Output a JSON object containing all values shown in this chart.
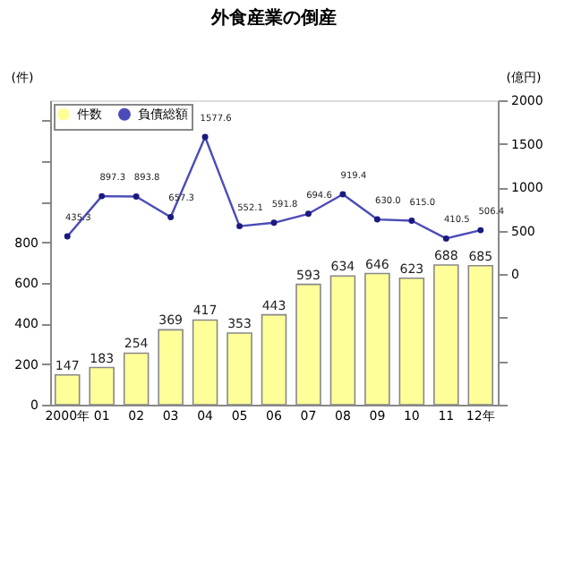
{
  "chart_data": {
    "type": "bar",
    "title": "外食産業の倒産",
    "ylabel": "(件)",
    "y2label": "(億円)",
    "categories": [
      "2000年",
      "01",
      "02",
      "03",
      "04",
      "05",
      "06",
      "07",
      "08",
      "09",
      "10",
      "11",
      "12年"
    ],
    "series": [
      {
        "name": "件数",
        "color": "#ffff99",
        "values": [
          147,
          183,
          254,
          369,
          417,
          353,
          443,
          593,
          634,
          646,
          623,
          688,
          685
        ]
      },
      {
        "name": "負債総額",
        "type": "line",
        "axis": "y2",
        "color": "#4b4bb8",
        "marker": "circle",
        "line_style": "solid",
        "values": [
          435.3,
          897.3,
          893.8,
          657.3,
          1577.6,
          552.1,
          591.8,
          694.6,
          919.4,
          630.0,
          615.0,
          410.5,
          506.4
        ],
        "value_labels": [
          "435.3",
          "897.3",
          "893.8",
          "657.3",
          "1577.6",
          "552.1",
          "591.8",
          "694.6",
          "919.4",
          "630.0",
          "615.0",
          "410.5",
          "506.4"
        ]
      }
    ],
    "ylim": [
      0,
      1500
    ],
    "yticks": [
      0,
      200,
      400,
      600,
      800,
      {
        "value": 1000,
        "label": null
      },
      {
        "value": 1200,
        "label": null
      },
      {
        "value": 1400,
        "label": null
      }
    ],
    "y2lim": [
      -1500,
      2000
    ],
    "y2ticks": [
      {
        "value": -1500,
        "label": null
      },
      {
        "value": -1000,
        "label": null
      },
      {
        "value": -500,
        "label": null
      },
      0,
      500,
      1000,
      1500,
      2000
    ],
    "data_labels": true,
    "grid": false,
    "legend": "top left"
  }
}
